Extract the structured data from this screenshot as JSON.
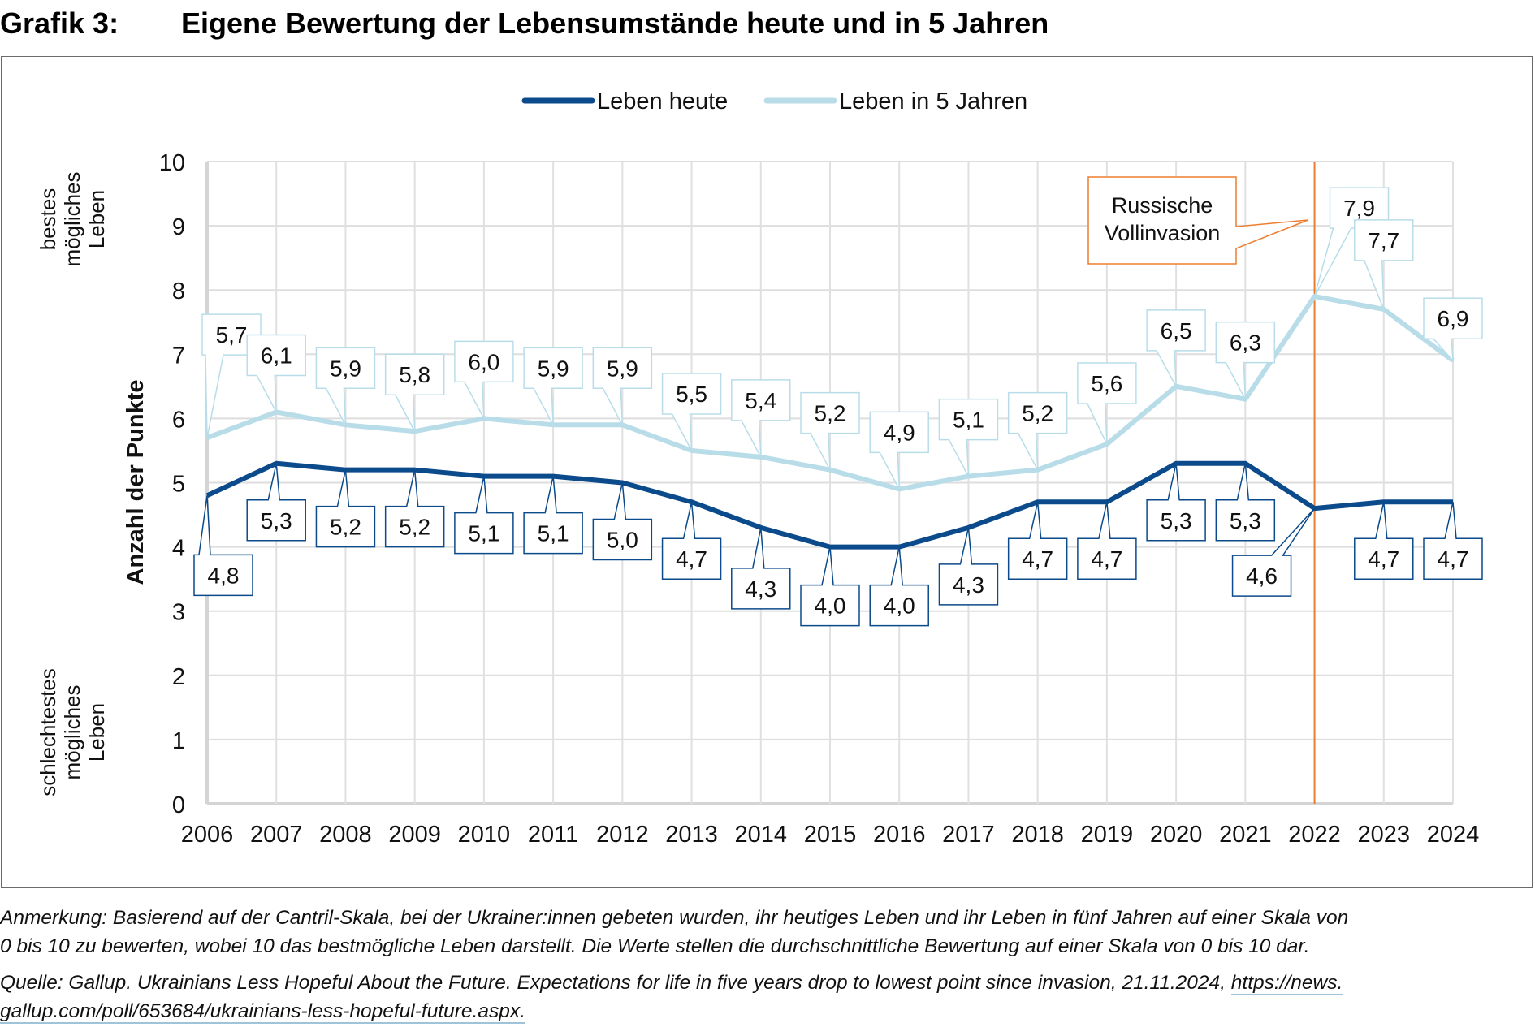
{
  "header": {
    "figure_number": "Grafik 3:",
    "title": "Eigene Bewertung der Lebensumstände heute und in 5 Jahren"
  },
  "chart_data": {
    "type": "line",
    "title": "Eigene Bewertung der Lebensumstände heute und in 5 Jahren",
    "xlabel": "",
    "ylabel": "Anzahl der Punkte",
    "y_top_note": "bestes möglichesLeben",
    "y_top_note_lines": [
      "bestes",
      "mögliches",
      "Leben"
    ],
    "y_bottom_note_lines": [
      "schlechtestes",
      "mögliches",
      "Leben"
    ],
    "ylim": [
      0,
      10
    ],
    "yticks": [
      "0",
      "1",
      "2",
      "3",
      "4",
      "5",
      "6",
      "7",
      "8",
      "9",
      "10"
    ],
    "grid": true,
    "legend_position": "top-center",
    "categories": [
      "2006",
      "2007",
      "2008",
      "2009",
      "2010",
      "2011",
      "2012",
      "2013",
      "2014",
      "2015",
      "2016",
      "2017",
      "2018",
      "2019",
      "2020",
      "2021",
      "2022",
      "2023",
      "2024"
    ],
    "series": [
      {
        "name": "Leben heute",
        "color": "#0b4a8b",
        "values": [
          4.8,
          5.3,
          5.2,
          5.2,
          5.1,
          5.1,
          5.0,
          4.7,
          4.3,
          4.0,
          4.0,
          4.3,
          4.7,
          4.7,
          5.3,
          5.3,
          4.6,
          4.7,
          4.7
        ],
        "labels": [
          "4,8",
          "5,3",
          "5,2",
          "5,2",
          "5,1",
          "5,1",
          "5,0",
          "4,7",
          "4,3",
          "4,0",
          "4,0",
          "4,3",
          "4,7",
          "4,7",
          "5,3",
          "5,3",
          "4,6",
          "4,7",
          "4,7"
        ]
      },
      {
        "name": "Leben in 5 Jahren",
        "color": "#b8dde9",
        "values": [
          5.7,
          6.1,
          5.9,
          5.8,
          6.0,
          5.9,
          5.9,
          5.5,
          5.4,
          5.2,
          4.9,
          5.1,
          5.2,
          5.6,
          6.5,
          6.3,
          7.9,
          7.7,
          6.9
        ],
        "labels": [
          "5,7",
          "6,1",
          "5,9",
          "5,8",
          "6,0",
          "5,9",
          "5,9",
          "5,5",
          "5,4",
          "5,2",
          "4,9",
          "5,1",
          "5,2",
          "5,6",
          "6,5",
          "6,3",
          "7,9",
          "7,7",
          "6,9"
        ]
      }
    ],
    "annotations": [
      {
        "text_lines": [
          "Russische",
          "Vollinvasion"
        ],
        "x": "2022",
        "type": "vertical-line",
        "color": "#ed7d31"
      }
    ]
  },
  "notes": {
    "anmerkung_line1": "Anmerkung: Basierend auf der Cantril-Skala, bei der Ukrainer:innen gebeten wurden, ihr heutiges Leben und ihr Leben in fünf Jahren auf einer Skala von",
    "anmerkung_line2": "0 bis 10 zu bewerten, wobei 10 das bestmögliche Leben darstellt. Die Werte stellen die durchschnittliche Bewertung auf einer Skala von 0 bis 10 dar.",
    "quelle_line1_text": "Quelle: Gallup. Ukrainians Less Hopeful About the Future. Expectations for life in five years drop to lowest point since invasion, 21.11.2024, ",
    "quelle_link_part1": "https://news.",
    "quelle_link_part2": "gallup.com/poll/653684/ukrainians-less-hopeful-future.aspx."
  }
}
